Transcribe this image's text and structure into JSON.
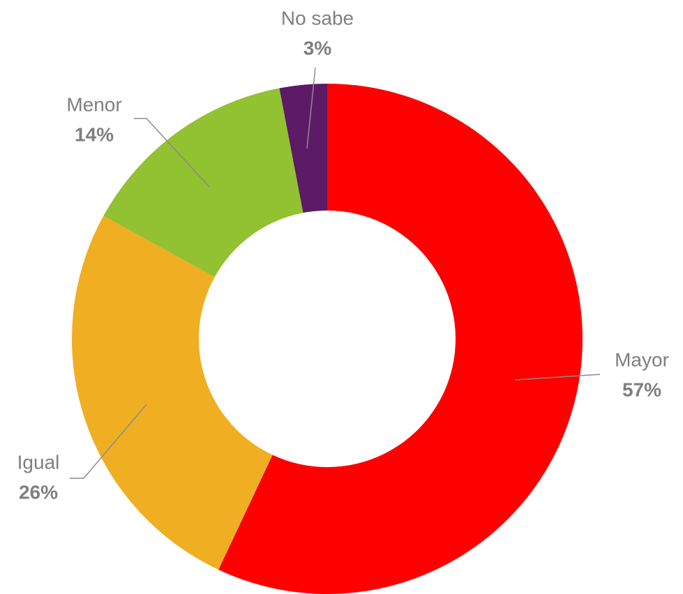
{
  "chart_data": {
    "type": "donut",
    "categories": [
      "Mayor",
      "Igual",
      "Menor",
      "No sabe"
    ],
    "values": [
      57,
      26,
      14,
      3
    ],
    "value_labels": [
      "57%",
      "26%",
      "14%",
      "3%"
    ],
    "colors": [
      "#ff0000",
      "#f0ae22",
      "#92c131",
      "#5d1a66"
    ]
  }
}
